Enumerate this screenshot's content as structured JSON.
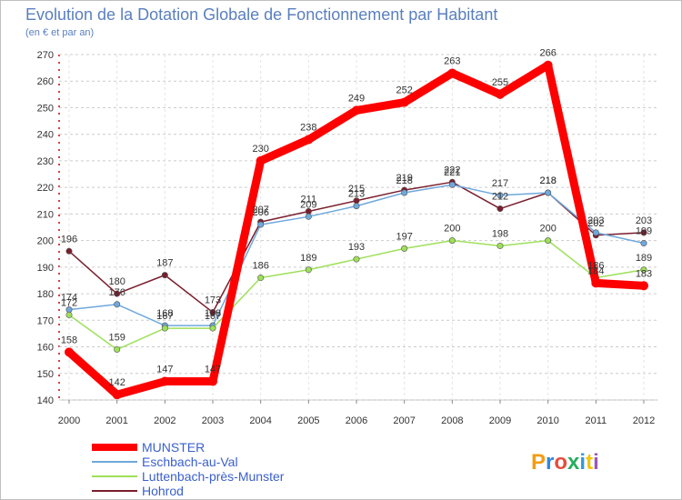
{
  "chart_data": {
    "type": "line",
    "title": "Evolution de la Dotation Globale de Fonctionnement par Habitant",
    "subtitle": "(en € et par an)",
    "xlabel": "",
    "ylabel": "",
    "x": [
      "2000",
      "2001",
      "2002",
      "2003",
      "2004",
      "2005",
      "2006",
      "2007",
      "2008",
      "2009",
      "2010",
      "2011",
      "2012"
    ],
    "ylim": [
      140,
      270
    ],
    "yticks": [
      140,
      150,
      160,
      170,
      180,
      190,
      200,
      210,
      220,
      230,
      240,
      250,
      260,
      270
    ],
    "grid": true,
    "legend_position": "bottom-left",
    "series": [
      {
        "name": "MUNSTER",
        "color": "#ff0000",
        "values": [
          158,
          142,
          147,
          147,
          230,
          238,
          249,
          252,
          263,
          255,
          266,
          184,
          183
        ]
      },
      {
        "name": "Eschbach-au-Val",
        "color": "#6fa8dc",
        "values": [
          174,
          176,
          168,
          168,
          206,
          209,
          213,
          218,
          221,
          217,
          218,
          203,
          199
        ]
      },
      {
        "name": "Luttenbach-près-Munster",
        "color": "#9ee05a",
        "values": [
          172,
          159,
          167,
          167,
          186,
          189,
          193,
          197,
          200,
          198,
          200,
          186,
          189
        ]
      },
      {
        "name": "Hohrod",
        "color": "#7a1e2e",
        "values": [
          196,
          180,
          187,
          173,
          207,
          211,
          215,
          219,
          222,
          212,
          218,
          202,
          203
        ]
      }
    ]
  },
  "logo": {
    "letters": [
      "P",
      "r",
      "o",
      "x",
      "i",
      "t",
      "i"
    ],
    "colors": [
      "#f39c12",
      "#2e86de",
      "#e74c3c",
      "#27ae60",
      "#3498db",
      "#f1c40f",
      "#9b59b6"
    ]
  }
}
